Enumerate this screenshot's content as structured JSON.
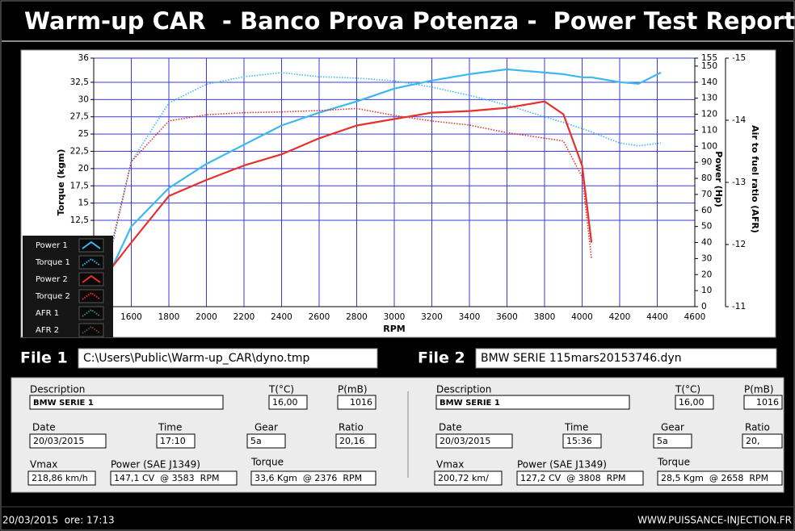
{
  "header": {
    "title": "Warm-up CAR  - Banco Prova Potenza -  Power Test Report"
  },
  "chart_data": {
    "type": "line",
    "x_label": "RPM",
    "y_label": "Torque (kgm)",
    "y2_label": "Power (Hp)",
    "y3_label": "Air to fuel ratio (AFR)",
    "x": [
      1500,
      1600,
      1800,
      2000,
      2200,
      2400,
      2600,
      2800,
      3000,
      3200,
      3400,
      3600,
      3800,
      3900,
      4000,
      4050,
      4200,
      4300,
      4420
    ],
    "xlim": [
      1400,
      4600
    ],
    "xticks": [
      1600,
      1800,
      2000,
      2200,
      2400,
      2600,
      2800,
      3000,
      3200,
      3400,
      3600,
      3800,
      4000,
      4200,
      4400,
      4600
    ],
    "ylim": [
      0,
      36
    ],
    "yticks": [
      36,
      {
        "value": 32.5,
        "label": "32,5"
      },
      30,
      {
        "value": 27.5,
        "label": "27,5"
      },
      25,
      {
        "value": 22.5,
        "label": "22,5"
      },
      20,
      {
        "value": 17.5,
        "label": "17,5"
      },
      15,
      {
        "value": 12.5,
        "label": "12,5"
      }
    ],
    "y2lim": [
      0,
      155
    ],
    "y2ticks": [
      0,
      10,
      20,
      30,
      40,
      50,
      60,
      70,
      80,
      90,
      100,
      110,
      120,
      130,
      140,
      150,
      155
    ],
    "y3lim": [
      -11,
      -15
    ],
    "y3ticks": [
      -11,
      -12,
      -13,
      -14,
      -15
    ],
    "grid": true,
    "legend": "bottom-left",
    "series": [
      {
        "name": "Power 1",
        "color": "#3cb8f0",
        "style": "solid",
        "axis": "y2",
        "values": [
          25,
          50,
          74,
          89,
          101,
          113,
          121,
          128,
          136,
          141,
          145,
          148,
          146,
          145,
          143,
          143,
          140,
          139,
          146
        ]
      },
      {
        "name": "Torque 1",
        "color": "#3cb8f0",
        "style": "dotted",
        "axis": "y",
        "values": [
          9,
          21,
          29.5,
          32.2,
          33.3,
          33.9,
          33.3,
          33.1,
          32.7,
          31.8,
          30.6,
          29.2,
          27.5,
          26.7,
          25.8,
          25.3,
          23.7,
          23.3,
          23.7
        ]
      },
      {
        "name": "Power 2",
        "color": "#e8302a",
        "style": "solid",
        "axis": "y2",
        "values": [
          25,
          40,
          69,
          79,
          88,
          95,
          105,
          113,
          117,
          121,
          122,
          124,
          128,
          120,
          88,
          40,
          null,
          null,
          null
        ]
      },
      {
        "name": "Torque 2",
        "color": "#e8302a",
        "style": "dotted",
        "axis": "y",
        "values": [
          9.5,
          21,
          26.9,
          27.8,
          28.1,
          28.2,
          28.4,
          28.7,
          27.7,
          26.9,
          26.3,
          25.2,
          24.4,
          24,
          18.8,
          7,
          null,
          null,
          null
        ]
      },
      {
        "name": "AFR 1",
        "color": "#3a8a8a",
        "style": "dotted",
        "axis": "y3",
        "values": [
          null,
          null,
          null,
          null,
          null,
          null,
          null,
          null,
          null,
          null,
          null,
          null,
          null,
          null,
          null,
          null,
          null,
          null,
          null
        ]
      },
      {
        "name": "AFR 2",
        "color": "#6a4a34",
        "style": "dotted",
        "axis": "y3",
        "values": [
          null,
          null,
          null,
          null,
          null,
          null,
          null,
          null,
          null,
          null,
          null,
          null,
          null,
          null,
          null,
          null,
          null,
          null,
          null
        ]
      }
    ]
  },
  "files": [
    {
      "label": "File 1",
      "path": "C:\\Users\\Public\\Warm-up_CAR\\dyno.tmp",
      "fields": {
        "description": {
          "label": "Description",
          "value": "BMW SERIE 1"
        },
        "temperature": {
          "label": "T(°C)",
          "value": "16,00"
        },
        "pressure": {
          "label": "P(mB)",
          "value": "1016"
        },
        "date": {
          "label": "Date",
          "value": "20/03/2015"
        },
        "time": {
          "label": "Time",
          "value": "17:10"
        },
        "gear": {
          "label": "Gear",
          "value": "5a"
        },
        "ratio": {
          "label": "Ratio",
          "value": "20,16"
        },
        "vmax": {
          "label": "Vmax",
          "value": "218,86 km/h"
        },
        "power": {
          "label": "Power (SAE J1349)",
          "value": "147,1 CV  @ 3583  RPM"
        },
        "torque": {
          "label": "Torque",
          "value": "33,6 Kgm  @ 2376  RPM"
        }
      }
    },
    {
      "label": "File 2",
      "path": "BMW SERIE 115mars20153746.dyn",
      "fields": {
        "description": {
          "label": "Description",
          "value": "BMW SERIE 1"
        },
        "temperature": {
          "label": "T(°C)",
          "value": "16,00"
        },
        "pressure": {
          "label": "P(mB)",
          "value": "1016"
        },
        "date": {
          "label": "Date",
          "value": "20/03/2015"
        },
        "time": {
          "label": "Time",
          "value": "15:36"
        },
        "gear": {
          "label": "Gear",
          "value": "5a"
        },
        "ratio": {
          "label": "Ratio",
          "value": "20,"
        },
        "vmax": {
          "label": "Vmax",
          "value": "200,72 km/"
        },
        "power": {
          "label": "Power (SAE J1349)",
          "value": "127,2 CV  @ 3808  RPM"
        },
        "torque": {
          "label": "Torque",
          "value": "28,5 Kgm  @ 2658  RPM"
        }
      }
    }
  ],
  "footer": {
    "left": "20/03/2015  ore: 17:13",
    "right": "WWW.PUISSANCE-INJECTION.FR"
  }
}
